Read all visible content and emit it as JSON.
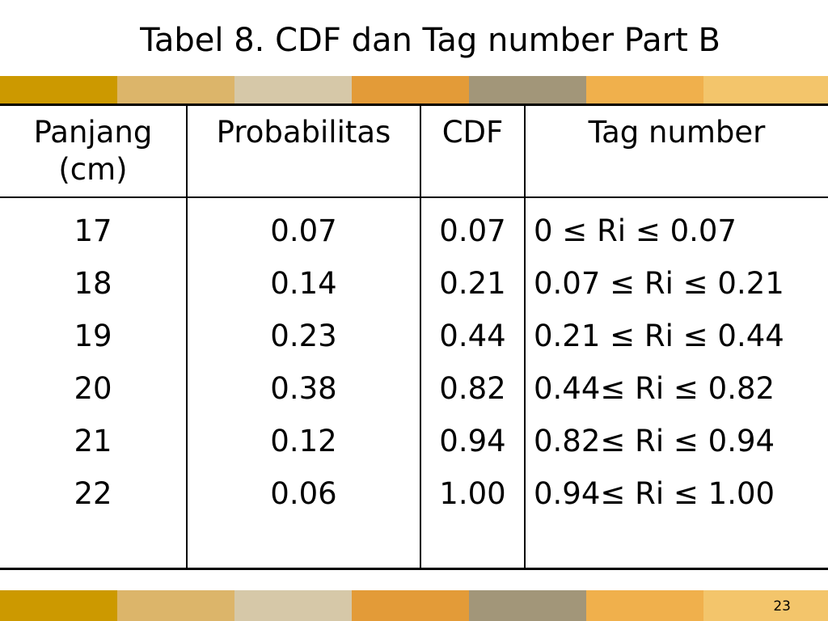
{
  "slide": {
    "title": "Tabel 8. CDF dan Tag number Part B",
    "number": "23"
  },
  "colors": {
    "band": [
      "#cc9900",
      "#dcb56a",
      "#d6c8a8",
      "#e39b38",
      "#a29679",
      "#f0b04c",
      "#f3c56b"
    ]
  },
  "table": {
    "headers": {
      "panjang_line1": "Panjang",
      "panjang_line2": "(cm)",
      "probabilitas": "Probabilitas",
      "cdf": "CDF",
      "tag": "Tag number"
    },
    "panjang": [
      "17",
      "18",
      "19",
      "20",
      "21",
      "22"
    ],
    "probabilitas": [
      "0.07",
      "0.14",
      "0.23",
      "0.38",
      "0.12",
      "0.06"
    ],
    "cdf": [
      "0.07",
      "0.21",
      "0.44",
      "0.82",
      "0.94",
      "1.00"
    ],
    "tag": [
      "0 ≤ Ri ≤ 0.07",
      "0.07 ≤ Ri ≤ 0.21",
      "0.21 ≤ Ri ≤ 0.44",
      "0.44≤ Ri ≤ 0.82",
      "0.82≤ Ri ≤ 0.94",
      "0.94≤ Ri ≤ 1.00"
    ]
  }
}
